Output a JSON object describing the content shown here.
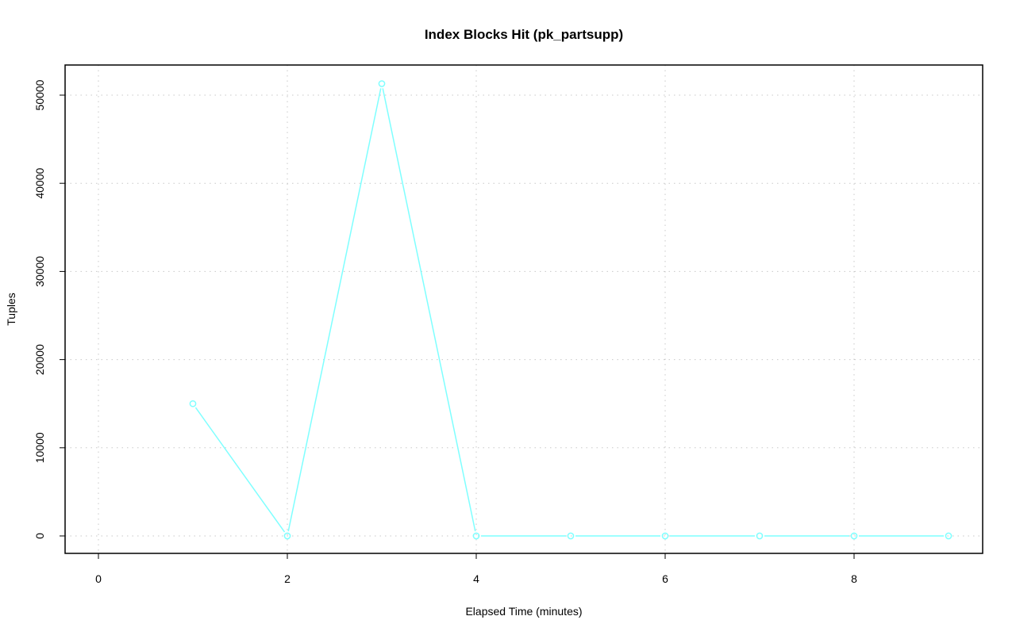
{
  "chart_data": {
    "type": "line",
    "title": "Index Blocks Hit (pk_partsupp)",
    "xlabel": "Elapsed Time (minutes)",
    "ylabel": "Tuples",
    "xlim": [
      -0.35,
      9.35
    ],
    "ylim": [
      -2000,
      53500
    ],
    "xticks": [
      0,
      2,
      4,
      6,
      8
    ],
    "yticks": [
      0,
      10000,
      20000,
      30000,
      40000,
      50000
    ],
    "grid": true,
    "series": [
      {
        "color": "#7fffff",
        "x": [
          1,
          2,
          3,
          4,
          5,
          6,
          7,
          8,
          9
        ],
        "y": [
          15000,
          0,
          51300,
          0,
          0,
          0,
          0,
          0,
          0
        ]
      }
    ]
  }
}
